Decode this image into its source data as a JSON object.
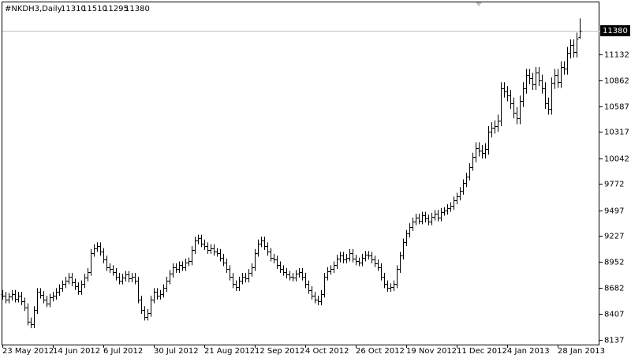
{
  "chart_data": {
    "type": "ohlc",
    "title": "#NKDH3,Daily",
    "color": "#000000",
    "categories": [
      "23 May 2012",
      null,
      null,
      null,
      null,
      null,
      null,
      null,
      null,
      null,
      null,
      null,
      null,
      null,
      null,
      null,
      "14 Jun 2012",
      null,
      null,
      null,
      null,
      null,
      null,
      null,
      null,
      null,
      null,
      null,
      null,
      null,
      null,
      null,
      "6 Jul 2012",
      null,
      null,
      null,
      null,
      null,
      null,
      null,
      null,
      null,
      null,
      null,
      null,
      null,
      null,
      null,
      "30 Jul 2012",
      null,
      null,
      null,
      null,
      null,
      null,
      null,
      null,
      null,
      null,
      null,
      null,
      null,
      null,
      null,
      "21 Aug 2012",
      null,
      null,
      null,
      null,
      null,
      null,
      null,
      null,
      null,
      null,
      null,
      null,
      null,
      null,
      null,
      "12 Sep 2012",
      null,
      null,
      null,
      null,
      null,
      null,
      null,
      null,
      null,
      null,
      null,
      null,
      null,
      null,
      null,
      "4 Oct 2012",
      null,
      null,
      null,
      null,
      null,
      null,
      null,
      null,
      null,
      null,
      null,
      null,
      null,
      null,
      null,
      "26 Oct 2012",
      null,
      null,
      null,
      null,
      null,
      null,
      null,
      null,
      null,
      null,
      null,
      null,
      null,
      null,
      null,
      "19 Nov 2012",
      null,
      null,
      null,
      null,
      null,
      null,
      null,
      null,
      null,
      null,
      null,
      null,
      null,
      null,
      null,
      "11 Dec 2012",
      null,
      null,
      null,
      null,
      null,
      null,
      null,
      null,
      null,
      null,
      null,
      null,
      null,
      null,
      null,
      "4 Jan 2013",
      null,
      null,
      null,
      null,
      null,
      null,
      null,
      null,
      null,
      null,
      null,
      null,
      null,
      null,
      null,
      "28 Jan 2013",
      null,
      null,
      null,
      null,
      null,
      null,
      null
    ],
    "open": [
      8620,
      8600,
      8560,
      8590,
      8620,
      8570,
      8600,
      8540,
      8480,
      8330,
      8300,
      8450,
      8640,
      8610,
      8560,
      8520,
      8580,
      8600,
      8640,
      8680,
      8720,
      8760,
      8800,
      8740,
      8700,
      8650,
      8720,
      8790,
      8850,
      9050,
      9100,
      9120,
      9060,
      8980,
      8900,
      8880,
      8850,
      8800,
      8760,
      8790,
      8820,
      8780,
      8800,
      8760,
      8560,
      8450,
      8380,
      8420,
      8560,
      8640,
      8600,
      8620,
      8680,
      8760,
      8830,
      8900,
      8880,
      8920,
      8900,
      8950,
      8960,
      9080,
      9180,
      9200,
      9150,
      9120,
      9080,
      9100,
      9060,
      9050,
      9000,
      8950,
      8880,
      8800,
      8720,
      8690,
      8760,
      8800,
      8780,
      8840,
      8900,
      9050,
      9150,
      9180,
      9120,
      9060,
      9000,
      8980,
      8920,
      8880,
      8850,
      8820,
      8800,
      8790,
      8830,
      8850,
      8800,
      8720,
      8660,
      8600,
      8560,
      8540,
      8620,
      8800,
      8860,
      8880,
      8920,
      8990,
      9020,
      8980,
      9000,
      9050,
      8990,
      8960,
      8950,
      9000,
      9030,
      9020,
      8980,
      8940,
      8900,
      8800,
      8720,
      8680,
      8690,
      8720,
      8880,
      9020,
      9160,
      9250,
      9320,
      9380,
      9420,
      9390,
      9440,
      9410,
      9380,
      9430,
      9460,
      9420,
      9480,
      9490,
      9520,
      9540,
      9600,
      9640,
      9700,
      9780,
      9850,
      9950,
      10060,
      10150,
      10120,
      10100,
      10140,
      10320,
      10360,
      10380,
      10440,
      10780,
      10740,
      10700,
      10620,
      10520,
      10460,
      10640,
      10780,
      10920,
      10880,
      10820,
      10940,
      10860,
      10780,
      10620,
      10560,
      10830,
      10920,
      10840,
      11000,
      10980,
      11150,
      11230,
      11160,
      11310
    ],
    "high": [
      8660,
      8640,
      8630,
      8660,
      8660,
      8640,
      8640,
      8580,
      8520,
      8370,
      8490,
      8680,
      8680,
      8650,
      8600,
      8620,
      8640,
      8680,
      8720,
      8760,
      8800,
      8840,
      8840,
      8780,
      8740,
      8760,
      8830,
      8890,
      9090,
      9140,
      9160,
      9160,
      9100,
      9020,
      8940,
      8920,
      8890,
      8840,
      8830,
      8860,
      8860,
      8840,
      8840,
      8800,
      8600,
      8490,
      8460,
      8600,
      8680,
      8680,
      8660,
      8720,
      8800,
      8870,
      8940,
      8940,
      8960,
      8960,
      8990,
      9000,
      9120,
      9220,
      9240,
      9240,
      9190,
      9160,
      9140,
      9140,
      9100,
      9090,
      9040,
      8990,
      8920,
      8840,
      8760,
      8800,
      8840,
      8840,
      8880,
      8940,
      9090,
      9190,
      9220,
      9220,
      9160,
      9100,
      9040,
      9020,
      8960,
      8920,
      8890,
      8860,
      8840,
      8870,
      8890,
      8890,
      8840,
      8760,
      8700,
      8640,
      8600,
      8660,
      8840,
      8900,
      8920,
      8960,
      9030,
      9060,
      9060,
      9040,
      9090,
      9090,
      9030,
      9000,
      9040,
      9070,
      9070,
      9060,
      9020,
      8980,
      8940,
      8840,
      8760,
      8730,
      8760,
      8920,
      9060,
      9200,
      9290,
      9360,
      9420,
      9460,
      9460,
      9480,
      9480,
      9450,
      9470,
      9500,
      9500,
      9520,
      9530,
      9560,
      9580,
      9640,
      9680,
      9740,
      9820,
      9890,
      9990,
      10100,
      10210,
      10210,
      10180,
      10200,
      10380,
      10420,
      10440,
      10500,
      10840,
      10840,
      10800,
      10760,
      10680,
      10580,
      10700,
      10840,
      10980,
      10980,
      10940,
      11000,
      11000,
      10920,
      10840,
      10680,
      10890,
      10980,
      10980,
      11060,
      11060,
      11210,
      11290,
      11290,
      11360,
      11510
    ],
    "low": [
      8560,
      8520,
      8520,
      8550,
      8530,
      8530,
      8500,
      8440,
      8290,
      8260,
      8260,
      8410,
      8570,
      8520,
      8480,
      8480,
      8540,
      8560,
      8600,
      8640,
      8680,
      8720,
      8700,
      8660,
      8610,
      8610,
      8680,
      8750,
      8810,
      9010,
      9060,
      9020,
      8940,
      8860,
      8840,
      8810,
      8760,
      8720,
      8720,
      8750,
      8740,
      8740,
      8720,
      8520,
      8410,
      8340,
      8340,
      8380,
      8520,
      8560,
      8560,
      8580,
      8640,
      8720,
      8790,
      8840,
      8840,
      8860,
      8860,
      8910,
      8920,
      9040,
      9140,
      9110,
      9080,
      9040,
      9040,
      9020,
      9010,
      8960,
      8910,
      8840,
      8760,
      8680,
      8650,
      8650,
      8720,
      8740,
      8740,
      8800,
      8860,
      9010,
      9110,
      9080,
      9020,
      8960,
      8940,
      8880,
      8840,
      8810,
      8780,
      8760,
      8750,
      8750,
      8790,
      8760,
      8680,
      8620,
      8560,
      8520,
      8500,
      8500,
      8580,
      8760,
      8820,
      8840,
      8880,
      8950,
      8940,
      8940,
      8960,
      8950,
      8920,
      8910,
      8910,
      8960,
      8980,
      8940,
      8900,
      8860,
      8760,
      8680,
      8640,
      8640,
      8650,
      8680,
      8840,
      8980,
      9120,
      9210,
      9280,
      9340,
      9350,
      9350,
      9370,
      9340,
      9340,
      9390,
      9380,
      9380,
      9440,
      9450,
      9480,
      9500,
      9560,
      9600,
      9660,
      9740,
      9810,
      9910,
      10000,
      10060,
      10040,
      10040,
      10080,
      10260,
      10300,
      10320,
      10380,
      10680,
      10640,
      10560,
      10460,
      10400,
      10400,
      10580,
      10720,
      10820,
      10760,
      10760,
      10800,
      10720,
      10560,
      10500,
      10500,
      10770,
      10780,
      10780,
      10920,
      10920,
      11090,
      11100,
      11100,
      11295
    ],
    "close": [
      8600,
      8560,
      8590,
      8620,
      8570,
      8600,
      8540,
      8480,
      8330,
      8300,
      8450,
      8640,
      8610,
      8560,
      8520,
      8580,
      8600,
      8640,
      8680,
      8720,
      8760,
      8800,
      8740,
      8700,
      8650,
      8720,
      8790,
      8850,
      9050,
      9100,
      9120,
      9060,
      8980,
      8900,
      8880,
      8850,
      8800,
      8760,
      8790,
      8820,
      8780,
      8800,
      8760,
      8560,
      8450,
      8380,
      8420,
      8560,
      8640,
      8600,
      8620,
      8680,
      8760,
      8830,
      8900,
      8880,
      8920,
      8900,
      8950,
      8960,
      9080,
      9180,
      9200,
      9150,
      9120,
      9080,
      9100,
      9060,
      9050,
      9000,
      8950,
      8880,
      8800,
      8720,
      8690,
      8760,
      8800,
      8780,
      8840,
      8900,
      9050,
      9150,
      9180,
      9120,
      9060,
      9000,
      8980,
      8920,
      8880,
      8850,
      8820,
      8800,
      8790,
      8830,
      8850,
      8800,
      8720,
      8660,
      8600,
      8560,
      8540,
      8620,
      8800,
      8860,
      8880,
      8920,
      8990,
      9020,
      8980,
      9000,
      9050,
      8990,
      8960,
      8950,
      9000,
      9030,
      9020,
      8980,
      8940,
      8900,
      8800,
      8720,
      8680,
      8690,
      8720,
      8880,
      9020,
      9160,
      9250,
      9320,
      9380,
      9420,
      9390,
      9440,
      9410,
      9380,
      9430,
      9460,
      9420,
      9480,
      9490,
      9520,
      9540,
      9600,
      9640,
      9700,
      9780,
      9850,
      9950,
      10060,
      10150,
      10120,
      10100,
      10140,
      10320,
      10360,
      10380,
      10440,
      10780,
      10740,
      10700,
      10620,
      10520,
      10460,
      10640,
      10780,
      10920,
      10880,
      10820,
      10940,
      10860,
      10780,
      10620,
      10560,
      10830,
      10920,
      10840,
      11000,
      10980,
      11150,
      11230,
      11160,
      11300,
      11380
    ],
    "ylim": [
      8087,
      11678
    ],
    "yticks": [
      8137,
      8407,
      8682,
      8952,
      9227,
      9497,
      9772,
      10042,
      10317,
      10587,
      10862,
      11132
    ]
  }
}
